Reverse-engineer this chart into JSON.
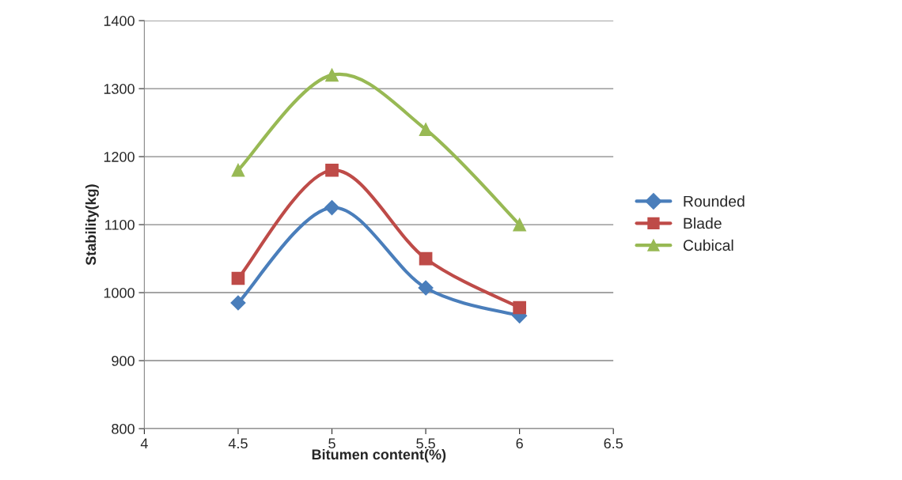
{
  "chart_data": {
    "type": "line",
    "xlabel": "Bitumen content(%)",
    "ylabel": "Stability(kg)",
    "x": [
      4.5,
      5,
      5.5,
      6
    ],
    "series": [
      {
        "name": "Rounded",
        "color": "#4a7ebb",
        "marker": "diamond",
        "values": [
          985,
          1125,
          1007,
          966
        ]
      },
      {
        "name": "Blade",
        "color": "#be4b48",
        "marker": "square",
        "values": [
          1021,
          1180,
          1050,
          978
        ]
      },
      {
        "name": "Cubical",
        "color": "#98b954",
        "marker": "triangle",
        "values": [
          1180,
          1320,
          1240,
          1100
        ]
      }
    ],
    "xlim": [
      4,
      6.5
    ],
    "xticks": [
      4,
      4.5,
      5,
      5.5,
      6,
      6.5
    ],
    "ylim": [
      800,
      1400
    ],
    "yticks": [
      800,
      900,
      1000,
      1100,
      1200,
      1300,
      1400
    ],
    "grid": "y",
    "legend": "right",
    "line_style": "solid"
  }
}
